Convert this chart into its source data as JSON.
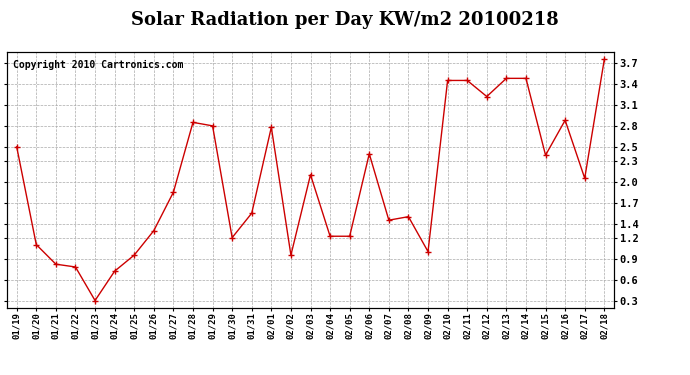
{
  "title": "Solar Radiation per Day KW/m2 20100218",
  "copyright_text": "Copyright 2010 Cartronics.com",
  "dates": [
    "01/19",
    "01/20",
    "01/21",
    "01/22",
    "01/23",
    "01/24",
    "01/25",
    "01/26",
    "01/27",
    "01/28",
    "01/29",
    "01/30",
    "01/31",
    "02/01",
    "02/02",
    "02/03",
    "02/04",
    "02/05",
    "02/06",
    "02/07",
    "02/08",
    "02/09",
    "02/10",
    "02/11",
    "02/12",
    "02/13",
    "02/14",
    "02/15",
    "02/16",
    "02/17",
    "02/18"
  ],
  "values": [
    2.5,
    1.1,
    0.82,
    0.78,
    0.3,
    0.72,
    0.95,
    1.3,
    1.85,
    2.85,
    2.8,
    1.2,
    1.55,
    2.78,
    0.95,
    2.1,
    1.22,
    1.22,
    2.4,
    1.45,
    1.5,
    1.0,
    3.45,
    3.45,
    3.22,
    3.48,
    3.48,
    2.38,
    2.88,
    2.05,
    3.75
  ],
  "line_color": "#cc0000",
  "marker": "+",
  "marker_size": 5,
  "ylim": [
    0.2,
    3.85
  ],
  "yticks": [
    0.3,
    0.6,
    0.9,
    1.2,
    1.4,
    1.7,
    2.0,
    2.3,
    2.5,
    2.8,
    3.1,
    3.4,
    3.7
  ],
  "grid_color": "#aaaaaa",
  "bg_color": "#ffffff",
  "title_fontsize": 13,
  "copyright_fontsize": 7
}
